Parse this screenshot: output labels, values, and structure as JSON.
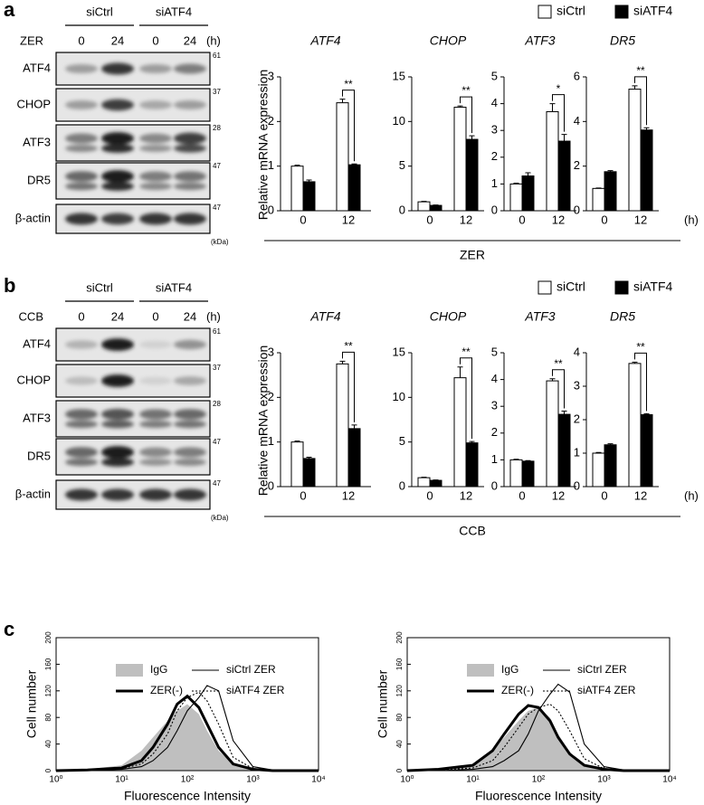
{
  "rows": [
    {
      "label": "a",
      "treatment": "ZER",
      "ylabel": "Relative mRNA expression",
      "x_unit": "(h)",
      "legend": [
        {
          "name": "siCtrl",
          "color": "#ffffff"
        },
        {
          "name": "siATF4",
          "color": "#000000"
        }
      ],
      "blot": {
        "groups": [
          "siCtrl",
          "siATF4"
        ],
        "treatment": "ZER",
        "times": [
          "0",
          "24",
          "0",
          "24"
        ],
        "unit": "(h)",
        "rows": [
          {
            "protein": "ATF4",
            "mw": "61"
          },
          {
            "protein": "CHOP",
            "mw": "37"
          },
          {
            "protein": "ATF3",
            "mw": "28"
          },
          {
            "protein": "DR5",
            "mw": "47"
          },
          {
            "protein": "β-actin",
            "mw": "47"
          }
        ],
        "mw_unit": "(kDa)"
      }
    },
    {
      "label": "b",
      "treatment": "CCB",
      "ylabel": "Relative mRNA expression",
      "x_unit": "(h)",
      "legend": [
        {
          "name": "siCtrl",
          "color": "#ffffff"
        },
        {
          "name": "siATF4",
          "color": "#000000"
        }
      ],
      "blot": {
        "groups": [
          "siCtrl",
          "siATF4"
        ],
        "treatment": "CCB",
        "times": [
          "0",
          "24",
          "0",
          "24"
        ],
        "unit": "(h)",
        "rows": [
          {
            "protein": "ATF4",
            "mw": "61"
          },
          {
            "protein": "CHOP",
            "mw": "37"
          },
          {
            "protein": "ATF3",
            "mw": "28"
          },
          {
            "protein": "DR5",
            "mw": "47"
          },
          {
            "protein": "β-actin",
            "mw": "47"
          }
        ],
        "mw_unit": "(kDa)"
      }
    }
  ],
  "panel_c_label": "c",
  "chart_data": [
    {
      "type": "bar",
      "title": "ATF4",
      "categories": [
        "0",
        "12"
      ],
      "ylim": [
        0,
        3
      ],
      "yticks": [
        0,
        1,
        2,
        3
      ],
      "significance": "**",
      "series": [
        {
          "values": [
            1.0,
            2.42
          ],
          "errors": [
            0.02,
            0.08
          ]
        },
        {
          "values": [
            0.65,
            1.03
          ],
          "errors": [
            0.04,
            0.02
          ]
        }
      ]
    },
    {
      "type": "bar",
      "title": "CHOP",
      "categories": [
        "0",
        "12"
      ],
      "ylim": [
        0,
        15
      ],
      "yticks": [
        0,
        5,
        10,
        15
      ],
      "significance": "**",
      "series": [
        {
          "values": [
            1.0,
            11.6
          ],
          "errors": [
            0.05,
            0.15
          ]
        },
        {
          "values": [
            0.6,
            8.0
          ],
          "errors": [
            0.05,
            0.4
          ]
        }
      ]
    },
    {
      "type": "bar",
      "title": "ATF3",
      "categories": [
        "0",
        "12"
      ],
      "ylim": [
        0,
        5
      ],
      "yticks": [
        0,
        1,
        2,
        3,
        4,
        5
      ],
      "significance": "*",
      "series": [
        {
          "values": [
            1.0,
            3.7
          ],
          "errors": [
            0.03,
            0.3
          ]
        },
        {
          "values": [
            1.3,
            2.6
          ],
          "errors": [
            0.12,
            0.25
          ]
        }
      ]
    },
    {
      "type": "bar",
      "title": "DR5",
      "categories": [
        "0",
        "12"
      ],
      "ylim": [
        0,
        6
      ],
      "yticks": [
        0,
        2,
        4,
        6
      ],
      "significance": "**",
      "series": [
        {
          "values": [
            1.0,
            5.45
          ],
          "errors": [
            0.02,
            0.15
          ]
        },
        {
          "values": [
            1.75,
            3.62
          ],
          "errors": [
            0.05,
            0.1
          ]
        }
      ]
    },
    {
      "type": "bar",
      "title": "ATF4",
      "categories": [
        "0",
        "12"
      ],
      "ylim": [
        0,
        3
      ],
      "yticks": [
        0,
        1,
        2,
        3
      ],
      "significance": "**",
      "series": [
        {
          "values": [
            1.0,
            2.75
          ],
          "errors": [
            0.02,
            0.06
          ]
        },
        {
          "values": [
            0.63,
            1.3
          ],
          "errors": [
            0.03,
            0.08
          ]
        }
      ]
    },
    {
      "type": "bar",
      "title": "CHOP",
      "categories": [
        "0",
        "12"
      ],
      "ylim": [
        0,
        15
      ],
      "yticks": [
        0,
        5,
        10,
        15
      ],
      "significance": "**",
      "series": [
        {
          "values": [
            1.0,
            12.2
          ],
          "errors": [
            0.05,
            1.2
          ]
        },
        {
          "values": [
            0.7,
            4.9
          ],
          "errors": [
            0.05,
            0.15
          ]
        }
      ]
    },
    {
      "type": "bar",
      "title": "ATF3",
      "categories": [
        "0",
        "12"
      ],
      "ylim": [
        0,
        5
      ],
      "yticks": [
        0,
        1,
        2,
        3,
        4,
        5
      ],
      "significance": "**",
      "series": [
        {
          "values": [
            1.0,
            3.95
          ],
          "errors": [
            0.02,
            0.08
          ]
        },
        {
          "values": [
            0.95,
            2.7
          ],
          "errors": [
            0.02,
            0.12
          ]
        }
      ]
    },
    {
      "type": "bar",
      "title": "DR5",
      "categories": [
        "0",
        "12"
      ],
      "ylim": [
        0,
        4
      ],
      "yticks": [
        0,
        1,
        2,
        3,
        4
      ],
      "significance": "**",
      "series": [
        {
          "values": [
            1.0,
            3.68
          ],
          "errors": [
            0.02,
            0.04
          ]
        },
        {
          "values": [
            1.25,
            2.15
          ],
          "errors": [
            0.03,
            0.03
          ]
        }
      ]
    },
    {
      "type": "line",
      "log_x": true,
      "xlabel": "Fluorescence Intensity",
      "ylabel": "Cell number",
      "xlim": [
        1,
        10000
      ],
      "xticks": [
        {
          "value": 1,
          "label": "10⁰"
        },
        {
          "value": 10,
          "label": "10¹"
        },
        {
          "value": 100,
          "label": "10²"
        },
        {
          "value": 1000,
          "label": "10³"
        },
        {
          "value": 10000,
          "label": "10⁴"
        }
      ],
      "ylim": [
        0,
        200
      ],
      "yticks": [
        0,
        40,
        80,
        120,
        160,
        200
      ],
      "x": [
        1,
        3,
        10,
        20,
        30,
        50,
        70,
        100,
        150,
        200,
        300,
        500,
        1000,
        2000,
        10000
      ],
      "series": [
        {
          "name": "IgG",
          "color": "#bfbfbf",
          "style": "fill",
          "values": [
            1,
            2,
            8,
            30,
            50,
            75,
            90,
            100,
            85,
            60,
            30,
            10,
            2,
            0,
            0
          ]
        },
        {
          "name": "ZER(-)",
          "color": "#000000",
          "style": "thick",
          "values": [
            0,
            1,
            4,
            15,
            35,
            70,
            100,
            112,
            95,
            70,
            35,
            10,
            2,
            0,
            0
          ]
        },
        {
          "name": "siCtrl ZER",
          "color": "#000000",
          "style": "thin",
          "values": [
            0,
            0,
            2,
            6,
            15,
            35,
            60,
            90,
            110,
            128,
            120,
            45,
            6,
            1,
            0
          ]
        },
        {
          "name": "siATF4 ZER",
          "color": "#000000",
          "style": "dotted",
          "values": [
            0,
            1,
            3,
            10,
            25,
            55,
            90,
            110,
            118,
            105,
            70,
            20,
            3,
            0,
            0
          ]
        }
      ]
    },
    {
      "type": "line",
      "log_x": true,
      "xlabel": "Fluorescence Intensity",
      "ylabel": "Cell number",
      "xlim": [
        1,
        10000
      ],
      "xticks": [
        {
          "value": 1,
          "label": "10⁰"
        },
        {
          "value": 10,
          "label": "10¹"
        },
        {
          "value": 100,
          "label": "10²"
        },
        {
          "value": 1000,
          "label": "10³"
        },
        {
          "value": 10000,
          "label": "10⁴"
        }
      ],
      "ylim": [
        0,
        200
      ],
      "yticks": [
        0,
        40,
        80,
        120,
        160,
        200
      ],
      "x": [
        1,
        3,
        10,
        20,
        30,
        50,
        70,
        100,
        150,
        200,
        300,
        500,
        1000,
        2000,
        10000
      ],
      "series": [
        {
          "name": "IgG",
          "color": "#bfbfbf",
          "style": "fill",
          "values": [
            1,
            2,
            8,
            30,
            50,
            75,
            90,
            95,
            80,
            55,
            28,
            9,
            2,
            0,
            0
          ]
        },
        {
          "name": "ZER(-)",
          "color": "#000000",
          "style": "thick",
          "values": [
            0,
            2,
            8,
            30,
            55,
            85,
            98,
            95,
            75,
            50,
            25,
            8,
            2,
            0,
            0
          ]
        },
        {
          "name": "siCtrl ZER",
          "color": "#000000",
          "style": "thin",
          "values": [
            0,
            0,
            2,
            6,
            15,
            30,
            55,
            90,
            115,
            130,
            118,
            40,
            6,
            1,
            0
          ]
        },
        {
          "name": "siATF4 ZER",
          "color": "#000000",
          "style": "dotted",
          "values": [
            0,
            1,
            4,
            15,
            35,
            65,
            85,
            95,
            100,
            90,
            60,
            18,
            3,
            0,
            0
          ]
        }
      ]
    }
  ]
}
